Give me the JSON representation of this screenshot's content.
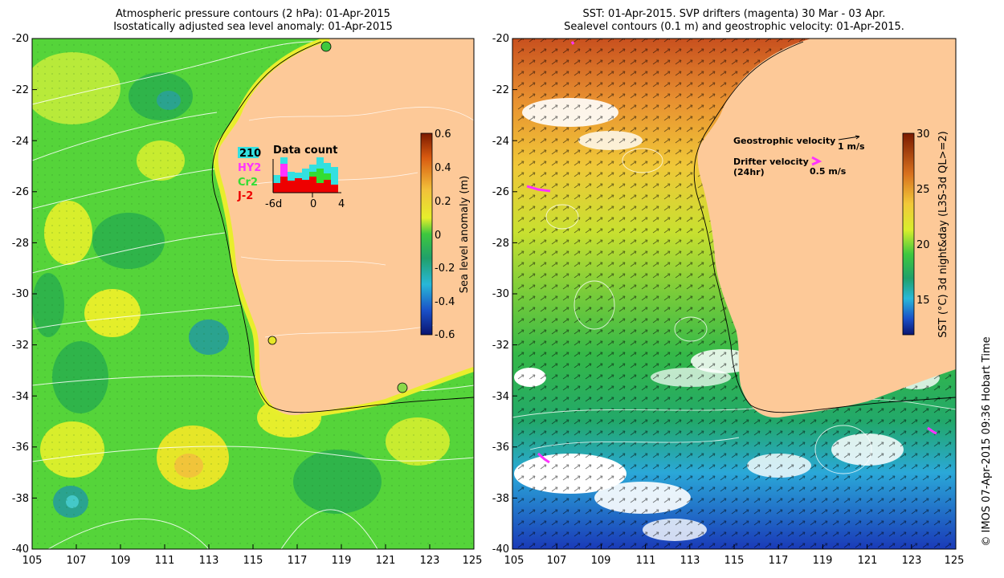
{
  "left_panel": {
    "title_line1": "Atmospheric pressure contours (2 hPa): 01-Apr-2015",
    "title_line2": "Isostatically adjusted sea level anomaly: 01-Apr-2015",
    "colorbar_label": "Sea level anomaly (m)",
    "colorbar_ticks": [
      "0.6",
      "0.4",
      "0.2",
      "0",
      "-0.2",
      "-0.4",
      "-0.6"
    ],
    "inset": {
      "title": "Data count",
      "legend": [
        {
          "label": "210",
          "color": "#33e0e0"
        },
        {
          "label": "HY2",
          "color": "#ff33ff"
        },
        {
          "label": "Cr2",
          "color": "#33dd33"
        },
        {
          "label": "J-2",
          "color": "#ee0000"
        }
      ],
      "x_ticks": [
        "-6d",
        "0",
        "4"
      ]
    }
  },
  "right_panel": {
    "title_line1": "SST: 01-Apr-2015. SVP drifters (magenta) 30 Mar - 03 Apr.",
    "title_line2": "Sealevel contours (0.1 m) and geostrophic velocity: 01-Apr-2015.",
    "colorbar_label": "SST (°C) 3d night&day (L3S-3d QL>=2)",
    "colorbar_ticks": [
      "30",
      "25",
      "20",
      "15"
    ],
    "geo_velocity_label": "Geostrophic velocity",
    "geo_velocity_scale": "1 m/s",
    "drifter_label_line1": "Drifter velocity",
    "drifter_label_line2": "(24hr)",
    "drifter_scale": "0.5 m/s"
  },
  "axes": {
    "y_ticks": [
      "-20",
      "-22",
      "-24",
      "-26",
      "-28",
      "-30",
      "-32",
      "-34",
      "-36",
      "-38",
      "-40"
    ],
    "x_ticks": [
      "105",
      "107",
      "109",
      "111",
      "113",
      "115",
      "117",
      "119",
      "121",
      "123",
      "125"
    ]
  },
  "credit": "© IMOS 07-Apr-2015 09:36 Hobart Time",
  "colors": {
    "land": "#fdc998",
    "sla_green": "#3ec83e",
    "sla_yellow": "#e6f02a",
    "sst_warm": "#d2691e",
    "sst_cold": "#1f5fd8"
  }
}
